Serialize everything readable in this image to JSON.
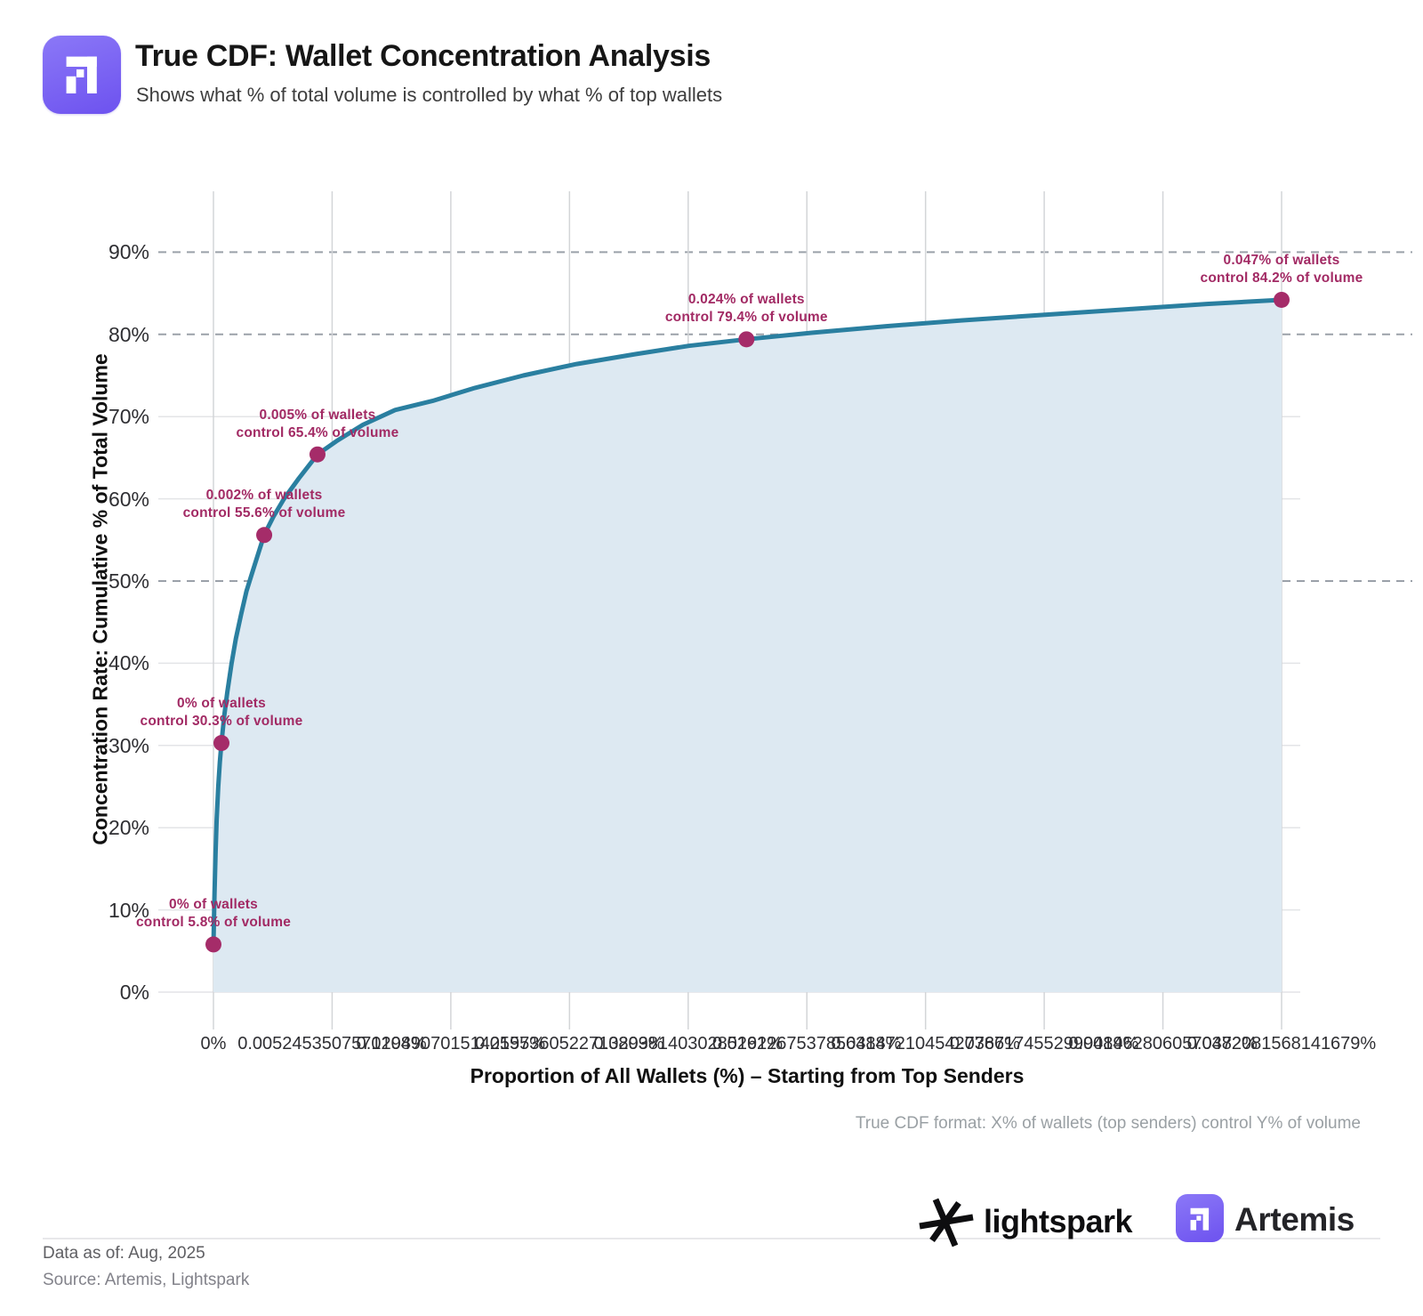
{
  "header": {
    "title": "True CDF: Wallet Concentration Analysis",
    "subtitle": "Shows what % of total volume is controlled by what % of top wallets"
  },
  "chart_data": {
    "type": "area",
    "title": "True CDF: Wallet Concentration Analysis",
    "xlabel": "Proportion of All Wallets (%) – Starting from Top Senders",
    "ylabel": "Concentration Rate: Cumulative % of Total Volume",
    "note": "True CDF format: X% of wallets (top senders) control Y% of volume",
    "ylim": [
      0,
      97
    ],
    "grid": "on",
    "y_ticks": [
      "0%",
      "10%",
      "20%",
      "30%",
      "40%",
      "50%",
      "60%",
      "70%",
      "80%",
      "90%"
    ],
    "dashed_y_values": [
      50,
      80,
      90
    ],
    "x_ticks": [
      "0%",
      "0.0052453507571298%",
      "0.0104907015142595%",
      "0.0157360522713893%",
      "0.0209814030285191%",
      "0.0262267537856488%",
      "0.0314721045427786%",
      "0.0367174552999084%",
      "0.0419628060570382%",
      "0.0472081568141679%"
    ],
    "points": [
      {
        "wallets_pct": "0%",
        "volume_pct": 5.8,
        "x_frac": 0.0,
        "line1": "0% of wallets",
        "line2": "control 5.8% of volume"
      },
      {
        "wallets_pct": "0%",
        "volume_pct": 30.3,
        "x_frac": 0.0075,
        "line1": "0% of wallets",
        "line2": "control 30.3% of volume"
      },
      {
        "wallets_pct": "0.002%",
        "volume_pct": 55.6,
        "x_frac": 0.0475,
        "line1": "0.002% of wallets",
        "line2": "control 55.6% of volume"
      },
      {
        "wallets_pct": "0.005%",
        "volume_pct": 65.4,
        "x_frac": 0.0974,
        "line1": "0.005% of wallets",
        "line2": "control 65.4% of volume"
      },
      {
        "wallets_pct": "0.024%",
        "volume_pct": 79.4,
        "x_frac": 0.499,
        "line1": "0.024% of wallets",
        "line2": "control 79.4% of volume"
      },
      {
        "wallets_pct": "0.047%",
        "volume_pct": 84.2,
        "x_frac": 1.0,
        "line1": "0.047% of wallets",
        "line2": "control 84.2% of volume"
      }
    ],
    "curve": [
      [
        0.0,
        5.8
      ],
      [
        0.001,
        12
      ],
      [
        0.002,
        17
      ],
      [
        0.003,
        21
      ],
      [
        0.0045,
        25
      ],
      [
        0.006,
        28
      ],
      [
        0.0075,
        30.3
      ],
      [
        0.01,
        33.5
      ],
      [
        0.013,
        36.5
      ],
      [
        0.017,
        40
      ],
      [
        0.021,
        43
      ],
      [
        0.026,
        46
      ],
      [
        0.031,
        48.8
      ],
      [
        0.037,
        51.3
      ],
      [
        0.0475,
        55.6
      ],
      [
        0.056,
        57.8
      ],
      [
        0.066,
        60
      ],
      [
        0.08,
        62.5
      ],
      [
        0.0974,
        65.4
      ],
      [
        0.115,
        67
      ],
      [
        0.14,
        69
      ],
      [
        0.17,
        70.8
      ],
      [
        0.205,
        71.9
      ],
      [
        0.245,
        73.5
      ],
      [
        0.29,
        75.0
      ],
      [
        0.34,
        76.4
      ],
      [
        0.395,
        77.6
      ],
      [
        0.445,
        78.6
      ],
      [
        0.499,
        79.4
      ],
      [
        0.56,
        80.2
      ],
      [
        0.63,
        81.0
      ],
      [
        0.7,
        81.7
      ],
      [
        0.78,
        82.4
      ],
      [
        0.86,
        83.1
      ],
      [
        0.93,
        83.7
      ],
      [
        1.0,
        84.2
      ]
    ],
    "colors": {
      "line": "#2a7fa0",
      "fill": "#dde9f2",
      "point": "#a52c69",
      "annotation": "#a22a64",
      "dashed_grid": "#9ba1a9",
      "solid_grid": "#e3e4e7",
      "vertical_grid": "#d3d5d8",
      "brand_purple": "#6d52ef"
    }
  },
  "footer": {
    "data_as_of": "Data as of: Aug, 2025",
    "source": "Source: Artemis, Lightspark",
    "lightspark_label": "lightspark",
    "artemis_label": "Artemis"
  }
}
